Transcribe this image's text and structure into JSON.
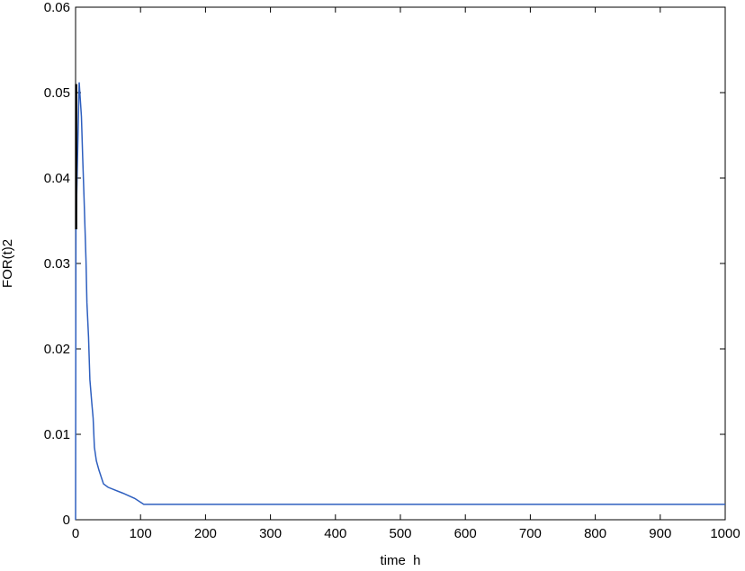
{
  "chart_data": {
    "type": "line",
    "title": "",
    "xlabel": "time  h",
    "ylabel": "FOR(t)2",
    "xlim": [
      0,
      1000
    ],
    "ylim": [
      0,
      0.06
    ],
    "xticks": [
      0,
      100,
      200,
      300,
      400,
      500,
      600,
      700,
      800,
      900,
      1000
    ],
    "yticks": [
      0,
      0.01,
      0.02,
      0.03,
      0.04,
      0.05,
      0.06
    ],
    "xtick_labels": [
      "0",
      "100",
      "200",
      "300",
      "400",
      "500",
      "600",
      "700",
      "800",
      "900",
      "1000"
    ],
    "ytick_labels": [
      "0",
      "0.01",
      "0.02",
      "0.03",
      "0.04",
      "0.05",
      "0.06"
    ],
    "grid": false,
    "series": [
      {
        "color": "#2e5fbf",
        "x": [
          0,
          0.5,
          5.5,
          9,
          11,
          13,
          16,
          17.5,
          20,
          22,
          25,
          27,
          29,
          32,
          36,
          43,
          50,
          73,
          91,
          105,
          1000
        ],
        "y": [
          0,
          0.034,
          0.0512,
          0.0472,
          0.0424,
          0.0377,
          0.0303,
          0.0254,
          0.0214,
          0.0164,
          0.0137,
          0.0119,
          0.0085,
          0.0069,
          0.0058,
          0.0042,
          0.0038,
          0.0031,
          0.0025,
          0.0018,
          0.0018
        ]
      },
      {
        "color": "#000000",
        "x": [
          0.8,
          0.8
        ],
        "y": [
          0.034,
          0.051
        ]
      }
    ]
  }
}
